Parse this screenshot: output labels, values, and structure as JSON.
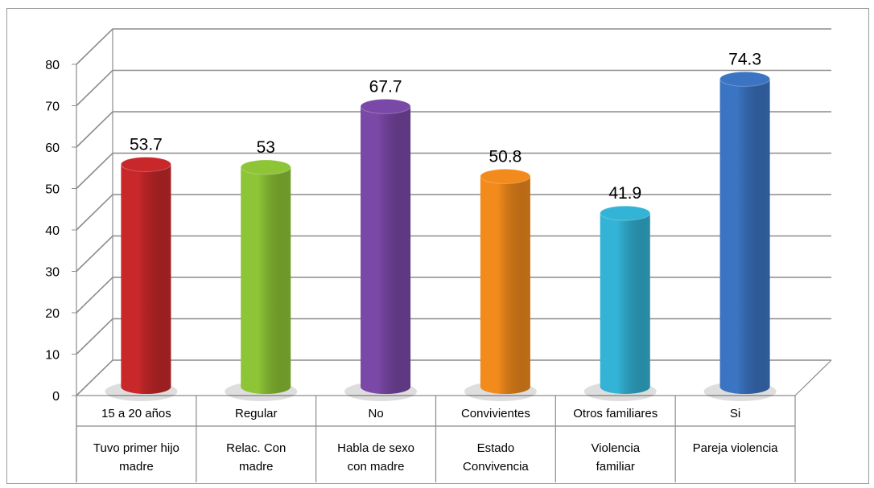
{
  "chart_data": {
    "type": "bar",
    "ylim": [
      0,
      80
    ],
    "yticks": [
      "0",
      "10",
      "20",
      "30",
      "40",
      "50",
      "60",
      "70",
      "80"
    ],
    "grid": true,
    "legend": "none",
    "categories": [
      {
        "line1": "15 a 20 años",
        "line2": "Tuvo primer hijo",
        "line3": "madre"
      },
      {
        "line1": "Regular",
        "line2": "Relac. Con",
        "line3": "madre"
      },
      {
        "line1": "No",
        "line2": "Habla de sexo",
        "line3": "con madre"
      },
      {
        "line1": "Convivientes",
        "line2": "Estado",
        "line3": "Convivencia"
      },
      {
        "line1": "Otros familiares",
        "line2": "Violencia",
        "line3": "familiar"
      },
      {
        "line1": "Si",
        "line2": "Pareja violencia",
        "line3": ""
      }
    ],
    "values": [
      53.7,
      53,
      67.7,
      50.8,
      41.9,
      74.3
    ],
    "value_labels": [
      "53.7",
      "53",
      "67.7",
      "50.8",
      "41.9",
      "74.3"
    ],
    "colors": [
      "#c8282a",
      "#8ec536",
      "#7a48a6",
      "#f28a1c",
      "#33b3d6",
      "#3b74c2"
    ]
  }
}
